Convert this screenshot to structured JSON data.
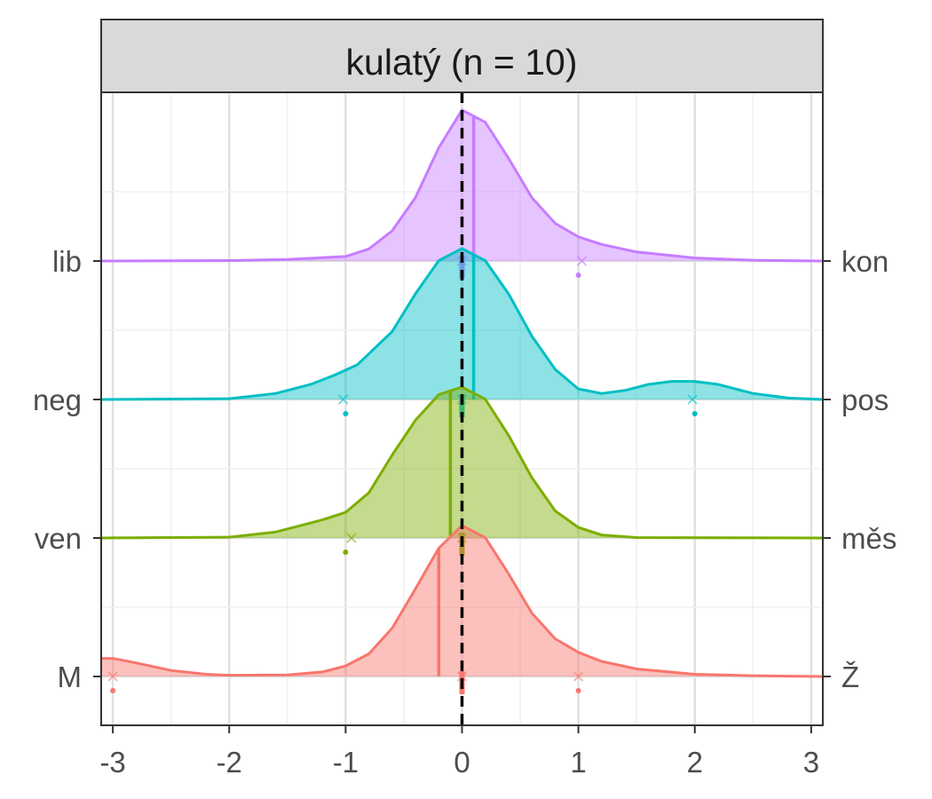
{
  "chart_data": {
    "type": "ridgeline-density",
    "facet_title": "kulatý (n = 10)",
    "xlim": [
      -3.1,
      3.1
    ],
    "x_ticks": [
      -3,
      -2,
      -1,
      0,
      1,
      2,
      3
    ],
    "x_tick_labels": [
      "-3",
      "-2",
      "-1",
      "0",
      "1",
      "2",
      "3"
    ],
    "reference_line_x": 0,
    "grid": true,
    "series": [
      {
        "left_label": "M",
        "right_label": "Ž",
        "color": "#F8766D",
        "mean": -0.2,
        "density": [
          [
            -3.1,
            0.12
          ],
          [
            -3.0,
            0.12
          ],
          [
            -2.8,
            0.09
          ],
          [
            -2.5,
            0.04
          ],
          [
            -2.2,
            0.015
          ],
          [
            -2.0,
            0.008
          ],
          [
            -1.5,
            0.01
          ],
          [
            -1.2,
            0.03
          ],
          [
            -1.0,
            0.07
          ],
          [
            -0.8,
            0.15
          ],
          [
            -0.6,
            0.32
          ],
          [
            -0.4,
            0.58
          ],
          [
            -0.2,
            0.85
          ],
          [
            0.0,
            1.0
          ],
          [
            0.2,
            0.92
          ],
          [
            0.4,
            0.68
          ],
          [
            0.6,
            0.42
          ],
          [
            0.8,
            0.25
          ],
          [
            1.0,
            0.16
          ],
          [
            1.2,
            0.1
          ],
          [
            1.5,
            0.05
          ],
          [
            2.0,
            0.015
          ],
          [
            2.5,
            0.005
          ],
          [
            3.1,
            0.0
          ]
        ],
        "points_x": [
          -3,
          0,
          1
        ],
        "crosses_x": [
          -3,
          0,
          1
        ]
      },
      {
        "left_label": "ven",
        "right_label": "měs",
        "color": "#7CAE00",
        "mean": -0.1,
        "density": [
          [
            -3.1,
            0.0
          ],
          [
            -2.0,
            0.005
          ],
          [
            -1.6,
            0.04
          ],
          [
            -1.4,
            0.08
          ],
          [
            -1.2,
            0.12
          ],
          [
            -1.0,
            0.17
          ],
          [
            -0.8,
            0.3
          ],
          [
            -0.6,
            0.55
          ],
          [
            -0.4,
            0.78
          ],
          [
            -0.2,
            0.95
          ],
          [
            0.0,
            1.0
          ],
          [
            0.2,
            0.92
          ],
          [
            0.4,
            0.68
          ],
          [
            0.6,
            0.4
          ],
          [
            0.8,
            0.18
          ],
          [
            1.0,
            0.07
          ],
          [
            1.2,
            0.02
          ],
          [
            1.5,
            0.003
          ],
          [
            3.1,
            0.0
          ]
        ],
        "points_x": [
          -1,
          0
        ],
        "crosses_x": [
          -0.95,
          0
        ]
      },
      {
        "left_label": "neg",
        "right_label": "pos",
        "color": "#00BFC4",
        "mean": 0.1,
        "density": [
          [
            -3.1,
            0.0
          ],
          [
            -2.0,
            0.005
          ],
          [
            -1.6,
            0.04
          ],
          [
            -1.3,
            0.1
          ],
          [
            -1.1,
            0.16
          ],
          [
            -0.9,
            0.23
          ],
          [
            -0.6,
            0.45
          ],
          [
            -0.4,
            0.7
          ],
          [
            -0.2,
            0.92
          ],
          [
            0.0,
            1.0
          ],
          [
            0.2,
            0.92
          ],
          [
            0.4,
            0.7
          ],
          [
            0.6,
            0.42
          ],
          [
            0.8,
            0.2
          ],
          [
            1.0,
            0.07
          ],
          [
            1.2,
            0.04
          ],
          [
            1.4,
            0.06
          ],
          [
            1.6,
            0.1
          ],
          [
            1.8,
            0.12
          ],
          [
            2.0,
            0.12
          ],
          [
            2.2,
            0.1
          ],
          [
            2.5,
            0.04
          ],
          [
            2.8,
            0.01
          ],
          [
            3.1,
            0.0
          ]
        ],
        "points_x": [
          -1,
          0,
          2
        ],
        "crosses_x": [
          -1.02,
          0,
          1.98
        ]
      },
      {
        "left_label": "lib",
        "right_label": "kon",
        "color": "#C77CFF",
        "mean": 0.1,
        "density": [
          [
            -3.1,
            0.0
          ],
          [
            -2.0,
            0.003
          ],
          [
            -1.5,
            0.01
          ],
          [
            -1.0,
            0.03
          ],
          [
            -0.8,
            0.08
          ],
          [
            -0.6,
            0.2
          ],
          [
            -0.4,
            0.42
          ],
          [
            -0.2,
            0.75
          ],
          [
            0.0,
            1.0
          ],
          [
            0.2,
            0.92
          ],
          [
            0.4,
            0.68
          ],
          [
            0.6,
            0.42
          ],
          [
            0.8,
            0.25
          ],
          [
            1.0,
            0.16
          ],
          [
            1.2,
            0.11
          ],
          [
            1.5,
            0.06
          ],
          [
            2.0,
            0.02
          ],
          [
            2.5,
            0.005
          ],
          [
            3.1,
            0.0
          ]
        ],
        "points_x": [
          0,
          1
        ],
        "crosses_x": [
          0,
          1.03
        ]
      }
    ]
  }
}
